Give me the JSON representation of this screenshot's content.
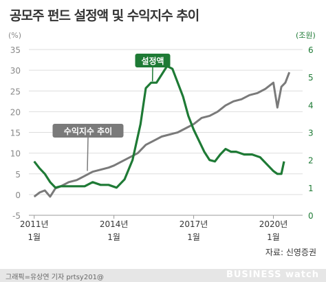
{
  "title": "공모주 펀드 설정액 및 수익지수 추이",
  "source": "자료: 신영증권",
  "credit": "그래픽=유상연 기자 prtsy201@",
  "logo": "BUSINESS watch",
  "colors": {
    "index": "#7a7a7a",
    "amount": "#1e7a35",
    "grid": "#dddddd",
    "axis_left": "#888888"
  },
  "chart_data": {
    "type": "line",
    "title": "공모주 펀드 설정액 및 수익지수 추이",
    "left_axis": {
      "unit": "(%)",
      "range": [
        -5,
        35
      ],
      "ticks": [
        "-5",
        "0",
        "5",
        "10",
        "15",
        "20",
        "25",
        "30",
        "35"
      ]
    },
    "right_axis": {
      "unit": "(조원)",
      "range": [
        0,
        6
      ],
      "ticks": [
        "0",
        "1",
        "2",
        "3",
        "4",
        "5",
        "6"
      ]
    },
    "x_ticks": [
      {
        "year": 2011.0,
        "line1": "2011년",
        "line2": "1월"
      },
      {
        "year": 2014.0,
        "line1": "2014년",
        "line2": "1월"
      },
      {
        "year": 2017.0,
        "line1": "2017년",
        "line2": "1월"
      },
      {
        "year": 2020.0,
        "line1": "2020년",
        "line2": "1월"
      }
    ],
    "grid": true,
    "series": [
      {
        "name": "수익지수 추이",
        "axis": "left",
        "x": [
          2011.0,
          2011.2,
          2011.4,
          2011.6,
          2011.8,
          2012.0,
          2012.3,
          2012.6,
          2012.9,
          2013.2,
          2013.5,
          2013.8,
          2014.0,
          2014.3,
          2014.6,
          2014.9,
          2015.2,
          2015.5,
          2015.8,
          2016.1,
          2016.4,
          2016.7,
          2017.0,
          2017.3,
          2017.6,
          2017.9,
          2018.2,
          2018.5,
          2018.8,
          2019.1,
          2019.4,
          2019.7,
          2020.0,
          2020.15,
          2020.3,
          2020.45,
          2020.6
        ],
        "values": [
          -0.5,
          0.5,
          1.0,
          -0.5,
          1.5,
          2.0,
          3.0,
          3.5,
          4.5,
          5.5,
          6.0,
          6.5,
          7.0,
          8.0,
          9.0,
          10.0,
          12.0,
          13.0,
          14.0,
          14.5,
          15.0,
          16.0,
          17.0,
          18.5,
          19.0,
          20.0,
          21.5,
          22.5,
          23.0,
          24.0,
          24.5,
          25.5,
          27.0,
          21.0,
          26.0,
          27.0,
          29.5
        ]
      },
      {
        "name": "설정액",
        "axis": "right",
        "x": [
          2011.0,
          2011.2,
          2011.4,
          2011.6,
          2011.8,
          2012.0,
          2012.3,
          2012.6,
          2012.9,
          2013.2,
          2013.5,
          2013.8,
          2014.1,
          2014.4,
          2014.7,
          2015.0,
          2015.2,
          2015.4,
          2015.6,
          2015.8,
          2016.0,
          2016.2,
          2016.4,
          2016.6,
          2016.8,
          2017.0,
          2017.2,
          2017.4,
          2017.6,
          2017.8,
          2018.0,
          2018.2,
          2018.4,
          2018.6,
          2018.9,
          2019.2,
          2019.5,
          2019.8,
          2020.0,
          2020.15,
          2020.3,
          2020.4
        ],
        "values": [
          1.95,
          1.7,
          1.5,
          1.2,
          1.0,
          1.05,
          1.05,
          1.05,
          1.05,
          1.2,
          1.1,
          1.1,
          1.0,
          1.3,
          2.0,
          3.3,
          4.6,
          4.8,
          4.8,
          5.1,
          5.4,
          5.3,
          4.8,
          4.3,
          3.6,
          3.1,
          2.7,
          2.3,
          2.0,
          1.95,
          2.2,
          2.4,
          2.3,
          2.3,
          2.2,
          2.2,
          2.1,
          1.8,
          1.6,
          1.5,
          1.5,
          1.95
        ]
      }
    ],
    "annotations": [
      {
        "text": "설정액",
        "series": "설정액"
      },
      {
        "text": "수익지수 추이",
        "series": "수익지수 추이"
      }
    ]
  }
}
